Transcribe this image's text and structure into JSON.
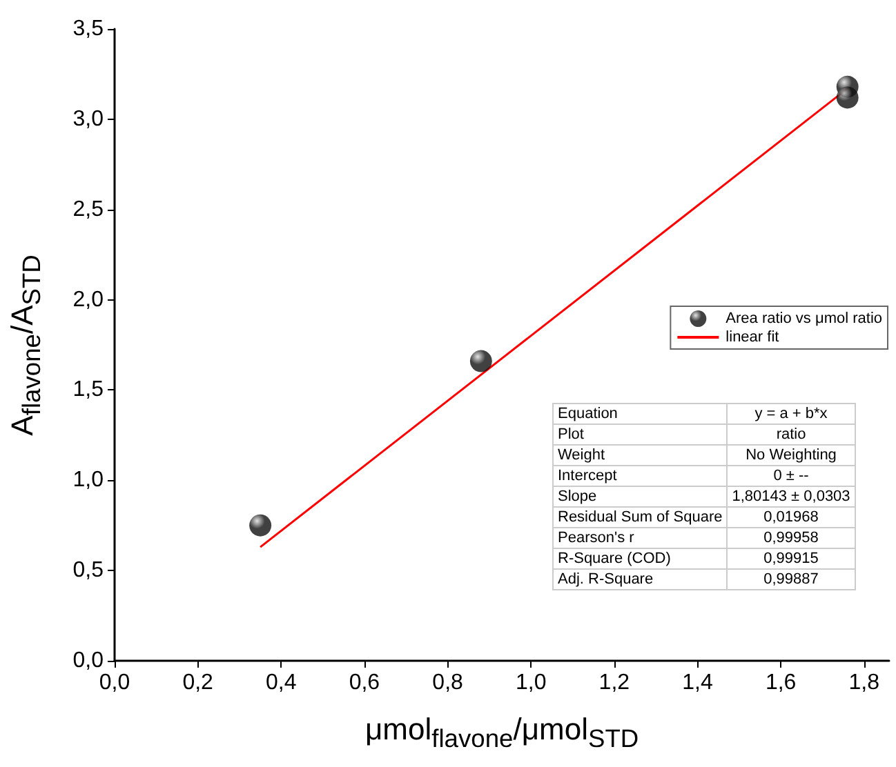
{
  "chart_data": {
    "type": "scatter",
    "xlabel": "μmol$_{flavone}$/μmol$_{STD}$",
    "ylabel": "A$_{flavone}$/A$_{STD}$",
    "series": [
      {
        "name": "Area ratio vs μmol ratio",
        "color": "#111111",
        "marker": "circle",
        "x": [
          0.35,
          0.88,
          1.76,
          1.76
        ],
        "values": [
          0.75,
          1.66,
          3.18,
          3.12
        ]
      },
      {
        "name": "linear fit",
        "type": "line",
        "color": "#ff0000",
        "marker": "none",
        "line_style": "solid",
        "x": [
          0.35,
          1.76
        ],
        "values": [
          0.63,
          3.17
        ]
      }
    ],
    "xlim": [
      0,
      1.86
    ],
    "ylim": [
      0,
      3.5
    ],
    "xticks": [
      {
        "value": 0,
        "label": "0,0"
      },
      {
        "value": 0.2,
        "label": "0,2"
      },
      {
        "value": 0.4,
        "label": "0,4"
      },
      {
        "value": 0.6,
        "label": "0,6"
      },
      {
        "value": 0.8,
        "label": "0,8"
      },
      {
        "value": 1.0,
        "label": "1,0"
      },
      {
        "value": 1.2,
        "label": "1,2"
      },
      {
        "value": 1.4,
        "label": "1,4"
      },
      {
        "value": 1.6,
        "label": "1,6"
      },
      {
        "value": 1.8,
        "label": "1,8"
      }
    ],
    "yticks": [
      {
        "value": 0,
        "label": "0,0"
      },
      {
        "value": 0.5,
        "label": "0,5"
      },
      {
        "value": 1.0,
        "label": "1,0"
      },
      {
        "value": 1.5,
        "label": "1,5"
      },
      {
        "value": 2.0,
        "label": "2,0"
      },
      {
        "value": 2.5,
        "label": "2,5"
      },
      {
        "value": 3.0,
        "label": "3,0"
      },
      {
        "value": 3.5,
        "label": "3,5"
      }
    ],
    "annotations": [
      "Equation",
      "y = a + b*x",
      "Plot",
      "ratio",
      "Weight",
      "No Weighting",
      "Intercept",
      "0 ± --",
      "Slope",
      "1,80143 ± 0,0303",
      "Residual Sum of Square",
      "0,01968",
      "Pearson's r",
      "0,99958",
      "R-Square (COD)",
      "0,99915",
      "Adj. R-Square",
      "0,99887"
    ],
    "legend": "right",
    "grid": false
  }
}
